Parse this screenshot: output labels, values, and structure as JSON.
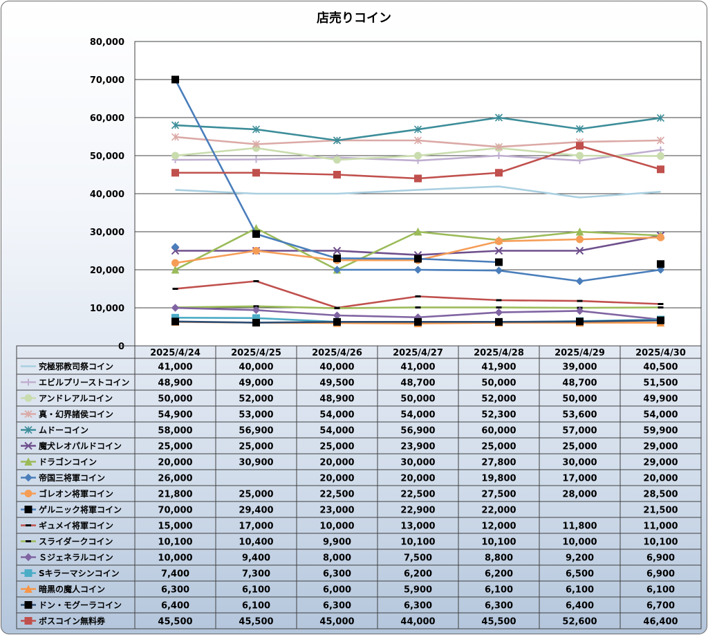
{
  "chart_data": {
    "type": "line",
    "title": "店売りコイン",
    "categories": [
      "2025/4/24",
      "2025/4/25",
      "2025/4/26",
      "2025/4/27",
      "2025/4/28",
      "2025/4/29",
      "2025/4/30"
    ],
    "ylim": [
      0,
      80000
    ],
    "yticks": [
      "0",
      "10,000",
      "20,000",
      "30,000",
      "40,000",
      "50,000",
      "60,000",
      "70,000",
      "80,000"
    ],
    "grid": true,
    "legend": "data table below chart",
    "series": [
      {
        "name": "究極邪教司祭コイン",
        "color": "#a9cfe0",
        "marker": "none",
        "values": [
          41000,
          40000,
          40000,
          41000,
          41900,
          39000,
          40500
        ],
        "labels": [
          "41,000",
          "40,000",
          "40,000",
          "41,000",
          "41,900",
          "39,000",
          "40,500"
        ]
      },
      {
        "name": "エビルプリーストコイン",
        "color": "#bfaed0",
        "marker": "plus",
        "values": [
          48900,
          49000,
          49500,
          48700,
          50000,
          48700,
          51500
        ],
        "labels": [
          "48,900",
          "49,000",
          "49,500",
          "48,700",
          "50,000",
          "48,700",
          "51,500"
        ]
      },
      {
        "name": "アンドレアルコイン",
        "color": "#c9dcae",
        "marker": "circle",
        "values": [
          50000,
          52000,
          48900,
          50000,
          52000,
          50000,
          49900
        ],
        "labels": [
          "50,000",
          "52,000",
          "48,900",
          "50,000",
          "52,000",
          "50,000",
          "49,900"
        ]
      },
      {
        "name": "真・幻界諸侯コイン",
        "color": "#dba9a6",
        "marker": "star",
        "values": [
          54900,
          53000,
          54000,
          54000,
          52300,
          53600,
          54000
        ],
        "labels": [
          "54,900",
          "53,000",
          "54,000",
          "54,000",
          "52,300",
          "53,600",
          "54,000"
        ]
      },
      {
        "name": "ムドーコイン",
        "color": "#3c8d99",
        "marker": "star",
        "values": [
          58000,
          56900,
          54000,
          56900,
          60000,
          57000,
          59900
        ],
        "labels": [
          "58,000",
          "56,900",
          "54,000",
          "56,900",
          "60,000",
          "57,000",
          "59,900"
        ]
      },
      {
        "name": "魔犬レオパルドコイン",
        "color": "#6e4f8c",
        "marker": "x",
        "values": [
          25000,
          25000,
          25000,
          23900,
          25000,
          25000,
          29000
        ],
        "labels": [
          "25,000",
          "25,000",
          "25,000",
          "23,900",
          "25,000",
          "25,000",
          "29,000"
        ]
      },
      {
        "name": "ドラゴンコイン",
        "color": "#9bbb59",
        "marker": "triangle",
        "values": [
          20000,
          30900,
          20000,
          30000,
          27800,
          30000,
          29000
        ],
        "labels": [
          "20,000",
          "30,900",
          "20,000",
          "30,000",
          "27,800",
          "30,000",
          "29,000"
        ]
      },
      {
        "name": "帝国三将軍コイン",
        "color": "#4a7ebb",
        "marker": "diamond",
        "values": [
          26000,
          null,
          20000,
          20000,
          19800,
          17000,
          20000
        ],
        "labels": [
          "26,000",
          "",
          "20,000",
          "20,000",
          "19,800",
          "17,000",
          "20,000"
        ]
      },
      {
        "name": "ゴレオン将軍コイン",
        "color": "#f59d56",
        "marker": "circle",
        "values": [
          21800,
          25000,
          22500,
          22500,
          27500,
          28000,
          28500
        ],
        "labels": [
          "21,800",
          "25,000",
          "22,500",
          "22,500",
          "27,500",
          "28,000",
          "28,500"
        ]
      },
      {
        "name": "ゲルニック将軍コイン",
        "color": "#4a7ebb",
        "marker": "square-black",
        "values": [
          70000,
          29400,
          23000,
          22900,
          22000,
          null,
          21500
        ],
        "labels": [
          "70,000",
          "29,400",
          "23,000",
          "22,900",
          "22,000",
          "",
          "21,500"
        ]
      },
      {
        "name": "ギュメイ将軍コイン",
        "color": "#c0504d",
        "marker": "dash",
        "values": [
          15000,
          17000,
          10000,
          13000,
          12000,
          11800,
          11000
        ],
        "labels": [
          "15,000",
          "17,000",
          "10,000",
          "13,000",
          "12,000",
          "11,800",
          "11,000"
        ]
      },
      {
        "name": "スライダークコイン",
        "color": "#9bbb59",
        "marker": "dash-black",
        "values": [
          10100,
          10400,
          9900,
          10100,
          10100,
          10000,
          10100
        ],
        "labels": [
          "10,100",
          "10,400",
          "9,900",
          "10,100",
          "10,100",
          "10,000",
          "10,100"
        ]
      },
      {
        "name": "Ｓジェネラルコイン",
        "color": "#8064a2",
        "marker": "diamond",
        "values": [
          10000,
          9400,
          8000,
          7500,
          8800,
          9200,
          6900
        ],
        "labels": [
          "10,000",
          "9,400",
          "8,000",
          "7,500",
          "8,800",
          "9,200",
          "6,900"
        ]
      },
      {
        "name": "Sキラーマシンコイン",
        "color": "#4bacc6",
        "marker": "square",
        "values": [
          7400,
          7300,
          6300,
          6200,
          6200,
          6500,
          6900
        ],
        "labels": [
          "7,400",
          "7,300",
          "6,300",
          "6,200",
          "6,200",
          "6,500",
          "6,900"
        ]
      },
      {
        "name": "暗黒の魔人コイン",
        "color": "#f79646",
        "marker": "triangle",
        "values": [
          6300,
          6100,
          6000,
          5900,
          6100,
          6100,
          6100
        ],
        "labels": [
          "6,300",
          "6,100",
          "6,000",
          "5,900",
          "6,100",
          "6,100",
          "6,100"
        ]
      },
      {
        "name": "ドン・モグーラコイン",
        "color": "#2c4d75",
        "marker": "square-black",
        "values": [
          6400,
          6100,
          6300,
          6300,
          6300,
          6400,
          6700
        ],
        "labels": [
          "6,400",
          "6,100",
          "6,300",
          "6,300",
          "6,300",
          "6,400",
          "6,700"
        ]
      },
      {
        "name": "ボスコイン無料券",
        "color": "#c0504d",
        "marker": "square",
        "values": [
          45500,
          45500,
          45000,
          44000,
          45500,
          52600,
          46400
        ],
        "labels": [
          "45,500",
          "45,500",
          "45,000",
          "44,000",
          "45,500",
          "52,600",
          "46,400"
        ]
      }
    ]
  }
}
